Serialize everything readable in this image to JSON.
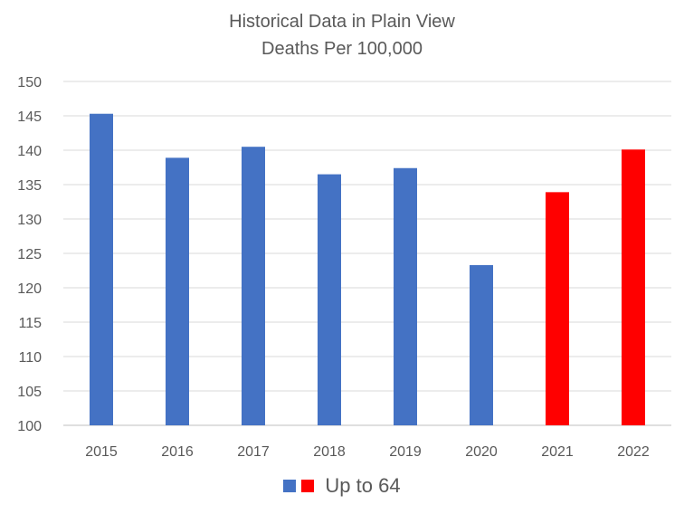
{
  "chart_data": {
    "type": "bar",
    "title": "Historical Data in Plain View",
    "subtitle": "Deaths Per 100,000",
    "xlabel": "",
    "ylabel": "",
    "categories": [
      "2015",
      "2016",
      "2017",
      "2018",
      "2019",
      "2020",
      "2021",
      "2022"
    ],
    "series": [
      {
        "name": "Up to 64",
        "values": [
          145.3,
          138.9,
          140.5,
          136.5,
          137.4,
          123.3,
          133.9,
          140.1
        ]
      }
    ],
    "bar_colors": [
      "#4472C4",
      "#4472C4",
      "#4472C4",
      "#4472C4",
      "#4472C4",
      "#4472C4",
      "#FF0000",
      "#FF0000"
    ],
    "ylim": [
      100,
      150
    ],
    "yticks": [
      "100",
      "105",
      "110",
      "115",
      "120",
      "125",
      "130",
      "135",
      "140",
      "145",
      "150"
    ],
    "grid": true,
    "legend": {
      "placement": "bottom",
      "label": "Up to 64",
      "swatch_colors": [
        "#4472C4",
        "#FF0000"
      ]
    }
  }
}
